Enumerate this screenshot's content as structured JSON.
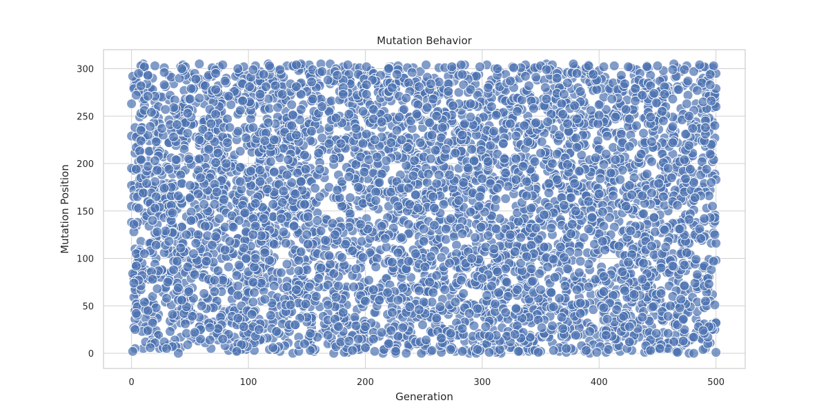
{
  "chart_data": {
    "type": "scatter",
    "title": "Mutation Behavior",
    "xlabel": "Generation",
    "ylabel": "Mutation Position",
    "xlim": [
      -24,
      525
    ],
    "ylim": [
      -16,
      320
    ],
    "xticks": [
      0,
      100,
      200,
      300,
      400,
      500
    ],
    "yticks": [
      0,
      50,
      100,
      150,
      200,
      250,
      300
    ],
    "grid": true,
    "legend": "none",
    "point_color": "#4c72b0",
    "n_points": 5000,
    "generation_range": [
      0,
      500
    ],
    "position_range": [
      0,
      305
    ],
    "note_values": "approximately uniform random scatter over generations 0-500 and positions 0-305; one mutation sample per point",
    "x": [
      0,
      3,
      5,
      8,
      10,
      12,
      15,
      18,
      21,
      24,
      27,
      30,
      33,
      37,
      40,
      44,
      47,
      51,
      55,
      58,
      62,
      66,
      70,
      74,
      79,
      83,
      88,
      92,
      97,
      101,
      106,
      111,
      116,
      121,
      126,
      131,
      137,
      142,
      148,
      154,
      159,
      165,
      171,
      177,
      183,
      189,
      195,
      201,
      207,
      213,
      219,
      225,
      231,
      237,
      243,
      249,
      255,
      261,
      267,
      273,
      279,
      285,
      291,
      297,
      303,
      309,
      315,
      321,
      327,
      333,
      339,
      345,
      351,
      357,
      363,
      369,
      375,
      381,
      387,
      393,
      399,
      405,
      411,
      417,
      423,
      429,
      435,
      441,
      447,
      453,
      459,
      465,
      471,
      477,
      483,
      489,
      495,
      500
    ],
    "y": [
      263,
      178,
      42,
      118,
      305,
      88,
      224,
      12,
      156,
      271,
      64,
      197,
      133,
      9,
      246,
      101,
      288,
      55,
      172,
      219,
      36,
      142,
      297,
      78,
      210,
      3,
      165,
      254,
      121,
      47,
      183,
      280,
      92,
      16,
      236,
      151,
      69,
      301,
      198,
      27,
      113,
      260,
      84,
      174,
      5,
      229,
      139,
      59,
      294,
      190,
      22,
      127,
      249,
      97,
      208,
      38,
      162,
      283,
      73,
      15,
      221,
      146,
      52,
      275,
      186,
      108,
      2,
      241,
      168,
      83,
      299,
      130,
      45,
      203,
      266,
      95,
      19,
      178,
      233,
      62,
      147,
      291,
      115,
      8,
      256,
      192,
      34,
      125,
      217,
      66,
      281,
      159,
      104,
      0,
      244,
      175,
      296,
      98
    ]
  }
}
